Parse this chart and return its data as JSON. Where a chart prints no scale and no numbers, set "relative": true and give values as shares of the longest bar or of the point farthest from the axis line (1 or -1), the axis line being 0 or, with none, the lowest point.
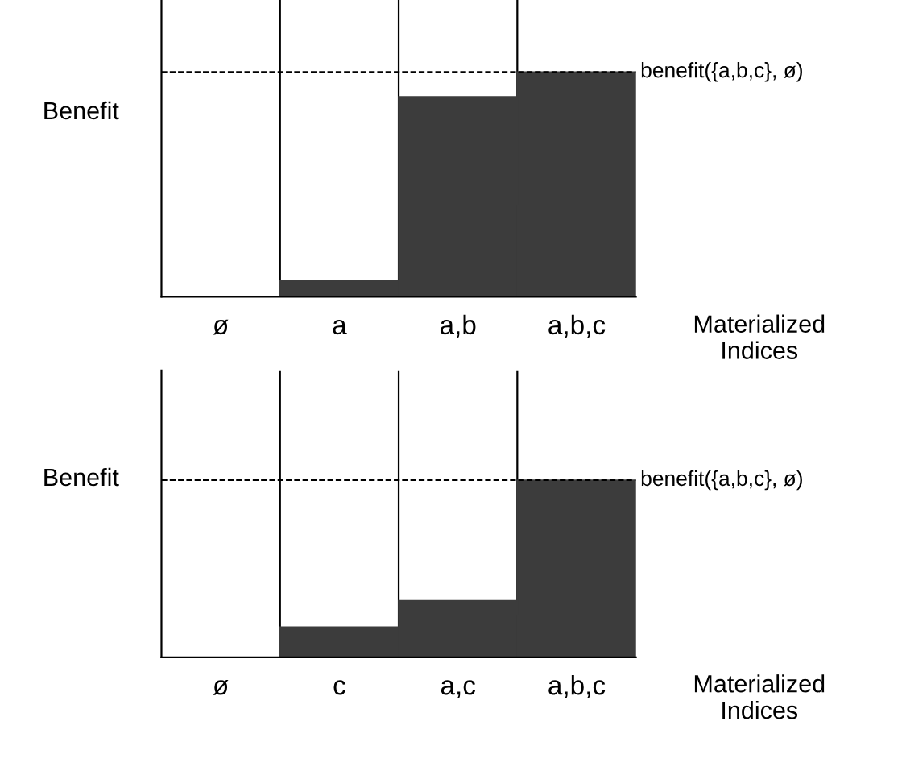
{
  "chart_data": [
    {
      "type": "bar",
      "relative": true,
      "categories": [
        "ø",
        "a",
        "a,b",
        "a,b,c"
      ],
      "values": [
        0,
        0.07,
        0.89,
        1
      ],
      "color": "#3c3c3c",
      "ylabel": "Benefit",
      "xlabel": "Materialized\nIndices",
      "grid": "x",
      "ref_lines": [
        {
          "axis": "y",
          "value": 1,
          "label": "benefit({a,b,c}, ø)",
          "line_style": "dashed"
        }
      ]
    },
    {
      "type": "bar",
      "relative": true,
      "categories": [
        "ø",
        "c",
        "a,c",
        "a,b,c"
      ],
      "values": [
        0,
        0.17,
        0.32,
        1
      ],
      "color": "#3c3c3c",
      "ylabel": "Benefit",
      "xlabel": "Materialized\nIndices",
      "grid": "x",
      "ref_lines": [
        {
          "axis": "y",
          "value": 1,
          "label": "benefit({a,b,c}, ø)",
          "line_style": "dashed"
        }
      ]
    }
  ]
}
